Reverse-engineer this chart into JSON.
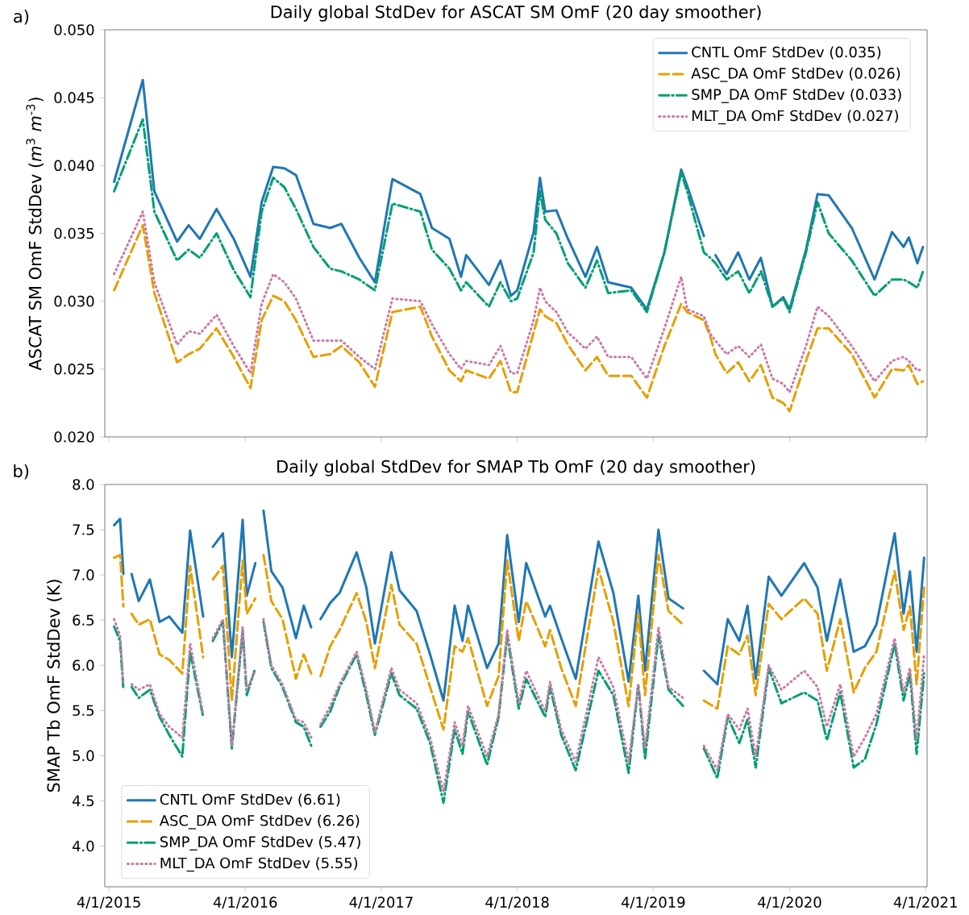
{
  "chart_data": [
    {
      "type": "line",
      "title": "Daily global StdDev for ASCAT SM OmF (20 day smoother)",
      "ylabel": "ASCAT SM OmF StdDev (*m*$^{3}$ *m*$^{-3}$)",
      "annotations": [
        "a)"
      ],
      "x": [
        "2015-04-15",
        "2015-07-01",
        "2015-08-01",
        "2015-10-01",
        "2015-11-01",
        "2015-12-01",
        "2016-01-15",
        "2016-03-01",
        "2016-04-15",
        "2016-05-15",
        "2016-06-15",
        "2016-07-15",
        "2016-08-15",
        "2016-10-01",
        "2016-11-15",
        "2016-12-15",
        "2017-02-01",
        "2017-03-15",
        "2017-05-01",
        "2017-07-15",
        "2017-08-15",
        "2017-10-01",
        "2017-11-01",
        "2017-11-15",
        "2018-01-15",
        "2018-02-15",
        "2018-03-15",
        "2018-04-01",
        "2018-05-15",
        "2018-06-01",
        "2018-06-15",
        "2018-07-15",
        "2018-08-15",
        "2018-10-01",
        "2018-11-01",
        "2018-12-01",
        "2019-02-01",
        "2019-03-15",
        "2019-05-01",
        "2019-06-15",
        "2019-07-01",
        "2019-08-15",
        "2019-09-01",
        "2019-09-15",
        "2019-10-15",
        "2019-11-15",
        "2019-12-15",
        "2020-01-15",
        "2020-02-15",
        "2020-03-15",
        "2020-04-01",
        "2020-05-15",
        "2020-06-15",
        "2020-07-15",
        "2020-09-15",
        "2020-11-15",
        "2021-01-01",
        "2021-02-01",
        "2021-02-15",
        "2021-03-10",
        "2021-03-25"
      ],
      "series": [
        {
          "name": "CNTL OmF StdDev (0.035)",
          "color": "#1f77b4",
          "line_style": "solid",
          "values": [
            0.0388,
            0.0463,
            0.0381,
            0.0344,
            0.0356,
            0.0346,
            0.0368,
            0.0346,
            0.0318,
            0.0373,
            0.0399,
            0.0398,
            0.0393,
            0.0357,
            0.0354,
            0.0357,
            0.0332,
            0.0314,
            0.039,
            0.0379,
            0.0354,
            0.0346,
            0.0318,
            0.0334,
            0.0312,
            0.033,
            0.0304,
            0.0308,
            0.0351,
            0.0391,
            0.0366,
            0.0367,
            0.0346,
            0.0318,
            0.034,
            0.0314,
            0.031,
            0.0294,
            0.0336,
            0.0397,
            0.0385,
            0.0348,
            null,
            0.0334,
            0.032,
            0.0336,
            0.0316,
            0.0332,
            0.0296,
            0.0303,
            0.0294,
            0.0338,
            0.0379,
            0.0378,
            0.0354,
            0.0316,
            0.0351,
            0.034,
            0.0347,
            0.0328,
            0.034
          ]
        },
        {
          "name": "ASC_DA OmF StdDev (0.026)",
          "color": "#e69f00",
          "line_style": "dashed",
          "values": [
            0.0308,
            0.0356,
            0.0306,
            0.0255,
            0.0261,
            0.0265,
            0.028,
            0.0259,
            0.0236,
            0.0286,
            0.0304,
            0.03,
            0.0286,
            0.0259,
            0.0261,
            0.0267,
            0.0255,
            0.0237,
            0.0292,
            0.0296,
            0.0274,
            0.0249,
            0.0241,
            0.0249,
            0.0243,
            0.0256,
            0.0233,
            0.0233,
            0.0277,
            0.0294,
            0.0289,
            0.0284,
            0.0268,
            0.0249,
            0.0259,
            0.0245,
            0.0245,
            0.0229,
            0.0267,
            0.0298,
            0.0292,
            0.0286,
            0.0274,
            0.0261,
            0.0247,
            0.0255,
            0.0241,
            0.0253,
            0.0229,
            0.0225,
            0.0219,
            0.0256,
            0.028,
            0.028,
            0.0261,
            0.0229,
            0.025,
            0.0249,
            0.0253,
            0.0239,
            0.0241
          ]
        },
        {
          "name": "SMP_DA OmF StdDev (0.033)",
          "color": "#009e73",
          "line_style": "dashdot",
          "values": [
            0.0381,
            0.0434,
            0.0366,
            0.033,
            0.0338,
            0.0332,
            0.035,
            0.0323,
            0.0303,
            0.0366,
            0.0391,
            0.0384,
            0.0368,
            0.034,
            0.0324,
            0.0322,
            0.0316,
            0.0308,
            0.0372,
            0.0366,
            0.0338,
            0.0324,
            0.0308,
            0.0314,
            0.0296,
            0.0314,
            0.03,
            0.0302,
            0.0336,
            0.0381,
            0.036,
            0.035,
            0.0328,
            0.031,
            0.033,
            0.0306,
            0.0308,
            0.0292,
            0.0336,
            0.0395,
            0.0381,
            0.0336,
            0.0332,
            0.0328,
            0.0316,
            0.0322,
            0.0306,
            0.0322,
            0.0296,
            0.0302,
            0.0292,
            0.0336,
            0.0373,
            0.035,
            0.033,
            0.0304,
            0.0316,
            0.0316,
            0.0314,
            0.031,
            0.0322
          ]
        },
        {
          "name": "MLT_DA OmF StdDev (0.027)",
          "color": "#cc79a7",
          "line_style": "dotted",
          "values": [
            0.032,
            0.0366,
            0.0314,
            0.0268,
            0.0278,
            0.0276,
            0.029,
            0.0267,
            0.0247,
            0.0298,
            0.032,
            0.0314,
            0.0302,
            0.0271,
            0.0271,
            0.0271,
            0.0259,
            0.025,
            0.0302,
            0.03,
            0.0283,
            0.0261,
            0.025,
            0.0256,
            0.0253,
            0.0267,
            0.0247,
            0.0247,
            0.0286,
            0.031,
            0.03,
            0.0292,
            0.0277,
            0.0265,
            0.0274,
            0.0259,
            0.0259,
            0.0243,
            0.028,
            0.0318,
            0.0294,
            0.0289,
            0.0276,
            0.0271,
            0.0261,
            0.0267,
            0.0259,
            0.0268,
            0.0243,
            0.0239,
            0.0233,
            0.0267,
            0.0296,
            0.0289,
            0.0267,
            0.0241,
            0.0256,
            0.0259,
            0.0256,
            0.0249,
            0.025
          ]
        }
      ],
      "xlim": [
        "2015-03-21",
        "2021-04-05"
      ],
      "ylim": [
        0.02,
        0.05
      ],
      "xticks": [
        {
          "value": "2015-04-01",
          "label": null
        },
        {
          "value": "2016-04-01",
          "label": null
        },
        {
          "value": "2017-04-01",
          "label": null
        },
        {
          "value": "2018-04-01",
          "label": null
        },
        {
          "value": "2019-04-01",
          "label": null
        },
        {
          "value": "2020-04-01",
          "label": null
        },
        {
          "value": "2021-04-01",
          "label": null
        }
      ],
      "yticks": [
        {
          "value": 0.02,
          "label": "0.020"
        },
        {
          "value": 0.025,
          "label": "0.025"
        },
        {
          "value": 0.03,
          "label": "0.030"
        },
        {
          "value": 0.035,
          "label": "0.035"
        },
        {
          "value": 0.04,
          "label": "0.040"
        },
        {
          "value": 0.045,
          "label": "0.045"
        },
        {
          "value": 0.05,
          "label": "0.050"
        }
      ],
      "tick_labels": "y",
      "legend": "top right"
    },
    {
      "type": "line",
      "title": "Daily global StdDev for SMAP Tb OmF (20 day smoother)",
      "ylabel": "SMAP Tb OmF StdDev (K)",
      "annotations": [
        "b)"
      ],
      "x": [
        "2015-04-15",
        "2015-05-01",
        "2015-05-10",
        "2015-05-20",
        "2015-06-01",
        "2015-06-20",
        "2015-07-20",
        "2015-08-15",
        "2015-09-10",
        "2015-10-15",
        "2015-11-05",
        "2015-12-10",
        "2015-12-25",
        "2016-01-05",
        "2016-02-01",
        "2016-02-25",
        "2016-03-25",
        "2016-04-05",
        "2016-04-28",
        "2016-05-08",
        "2016-05-20",
        "2016-06-10",
        "2016-07-10",
        "2016-08-15",
        "2016-09-05",
        "2016-09-25",
        "2016-10-10",
        "2016-10-20",
        "2016-11-15",
        "2016-12-10",
        "2017-01-25",
        "2017-02-20",
        "2017-03-15",
        "2017-04-28",
        "2017-05-20",
        "2017-07-05",
        "2017-08-10",
        "2017-09-15",
        "2017-10-15",
        "2017-11-05",
        "2017-11-20",
        "2018-01-10",
        "2018-02-10",
        "2018-03-05",
        "2018-04-05",
        "2018-04-25",
        "2018-06-15",
        "2018-06-28",
        "2018-07-28",
        "2018-09-05",
        "2018-11-05",
        "2018-12-15",
        "2019-01-25",
        "2019-02-20",
        "2019-03-10",
        "2019-04-15",
        "2019-05-12",
        "2019-06-20",
        "2019-07-25",
        "2019-08-15",
        "2019-09-20",
        "2019-10-18",
        "2019-11-18",
        "2019-12-10",
        "2020-01-01",
        "2020-02-05",
        "2020-03-10",
        "2020-05-10",
        "2020-06-15",
        "2020-07-10",
        "2020-08-15",
        "2020-09-20",
        "2020-10-20",
        "2020-11-20",
        "2021-01-08",
        "2021-02-01",
        "2021-02-18",
        "2021-03-08",
        "2021-03-28"
      ],
      "series": [
        {
          "name": "CNTL OmF StdDev (6.61)",
          "color": "#1f77b4",
          "line_style": "solid",
          "values": [
            7.55,
            7.62,
            7.01,
            null,
            7.01,
            6.71,
            6.95,
            6.48,
            6.54,
            6.36,
            7.49,
            6.54,
            null,
            7.31,
            7.46,
            6.09,
            7.61,
            6.77,
            7.13,
            null,
            7.71,
            7.04,
            6.86,
            6.3,
            6.66,
            6.42,
            null,
            6.51,
            6.69,
            6.8,
            7.25,
            6.86,
            6.24,
            7.25,
            6.83,
            6.6,
            6.12,
            5.61,
            6.66,
            6.27,
            6.66,
            5.97,
            6.24,
            7.44,
            6.48,
            7.13,
            6.54,
            6.66,
            6.3,
            5.85,
            7.37,
            6.8,
            5.82,
            6.77,
            5.94,
            7.5,
            6.74,
            6.63,
            null,
            5.94,
            5.79,
            6.51,
            6.27,
            6.66,
            5.85,
            6.98,
            6.77,
            7.13,
            6.86,
            6.27,
            6.95,
            6.15,
            6.21,
            6.45,
            7.46,
            6.57,
            7.04,
            6.15,
            7.19
          ]
        },
        {
          "name": "ASC_DA OmF StdDev (6.26)",
          "color": "#e69f00",
          "line_style": "dashed",
          "values": [
            7.19,
            7.22,
            6.65,
            null,
            6.57,
            6.45,
            6.51,
            6.12,
            6.06,
            5.91,
            7.1,
            6.09,
            null,
            6.95,
            7.1,
            5.61,
            7.16,
            6.57,
            6.74,
            null,
            7.22,
            6.71,
            6.51,
            5.85,
            6.12,
            5.91,
            null,
            5.88,
            6.21,
            6.39,
            6.8,
            6.48,
            5.97,
            6.89,
            6.45,
            6.24,
            5.76,
            5.29,
            6.21,
            6.15,
            6.3,
            5.55,
            5.88,
            7.16,
            6.27,
            6.71,
            6.21,
            6.39,
            5.97,
            5.55,
            7.07,
            6.48,
            5.55,
            6.57,
            5.67,
            7.22,
            6.6,
            6.45,
            null,
            5.61,
            5.52,
            6.21,
            6.12,
            6.33,
            5.67,
            6.68,
            6.51,
            6.74,
            6.57,
            5.94,
            6.51,
            5.7,
            5.97,
            6.15,
            7.04,
            6.39,
            6.65,
            5.79,
            6.86
          ]
        },
        {
          "name": "SMP_DA OmF StdDev (5.47)",
          "color": "#009e73",
          "line_style": "dashdot",
          "values": [
            6.43,
            6.27,
            5.73,
            null,
            5.76,
            5.64,
            5.73,
            5.43,
            5.23,
            4.99,
            6.15,
            5.43,
            null,
            6.27,
            6.48,
            5.08,
            6.39,
            5.67,
            5.97,
            null,
            6.48,
            5.97,
            5.76,
            5.37,
            5.32,
            5.11,
            null,
            5.32,
            5.49,
            5.76,
            6.12,
            5.67,
            5.23,
            5.91,
            5.67,
            5.52,
            5.14,
            4.48,
            5.29,
            5.02,
            5.49,
            4.9,
            5.43,
            6.33,
            5.52,
            5.85,
            5.43,
            5.76,
            5.23,
            4.84,
            5.94,
            5.67,
            4.81,
            5.79,
            4.96,
            6.33,
            5.73,
            5.55,
            null,
            5.08,
            4.75,
            5.43,
            5.14,
            5.4,
            4.87,
            5.97,
            5.58,
            5.7,
            5.61,
            5.17,
            5.7,
            4.87,
            4.96,
            5.35,
            6.24,
            5.61,
            5.91,
            5.02,
            5.91
          ]
        },
        {
          "name": "MLT_DA OmF StdDev (5.55)",
          "color": "#cc79a7",
          "line_style": "dotted",
          "values": [
            6.51,
            6.33,
            5.79,
            null,
            5.79,
            5.73,
            5.79,
            5.46,
            5.32,
            5.2,
            6.24,
            5.46,
            null,
            6.3,
            6.51,
            5.11,
            6.42,
            5.73,
            5.94,
            null,
            6.51,
            6.0,
            5.79,
            5.4,
            5.37,
            5.2,
            null,
            5.35,
            5.55,
            5.79,
            6.15,
            5.73,
            5.26,
            5.97,
            5.73,
            5.58,
            5.2,
            4.6,
            5.37,
            5.11,
            5.55,
            4.99,
            5.46,
            6.39,
            5.58,
            5.94,
            5.49,
            5.82,
            5.29,
            4.93,
            6.09,
            5.76,
            4.93,
            5.79,
            5.08,
            6.42,
            5.76,
            5.64,
            null,
            5.11,
            4.84,
            5.46,
            5.29,
            5.52,
            4.99,
            6.0,
            5.73,
            5.94,
            5.76,
            5.32,
            5.79,
            4.99,
            5.2,
            5.46,
            6.3,
            5.7,
            5.97,
            5.17,
            6.12
          ]
        }
      ],
      "xlim": [
        "2015-03-21",
        "2021-04-05"
      ],
      "ylim": [
        3.55,
        8.0
      ],
      "xticks": [
        {
          "value": "2015-04-01",
          "label": "4/1/2015"
        },
        {
          "value": "2016-04-01",
          "label": "4/1/2016"
        },
        {
          "value": "2017-04-01",
          "label": "4/1/2017"
        },
        {
          "value": "2018-04-01",
          "label": "4/1/2018"
        },
        {
          "value": "2019-04-01",
          "label": "4/1/2019"
        },
        {
          "value": "2020-04-01",
          "label": "4/1/2020"
        },
        {
          "value": "2021-04-01",
          "label": "4/1/2021"
        }
      ],
      "yticks": [
        {
          "value": 4.0,
          "label": "4.0"
        },
        {
          "value": 4.5,
          "label": "4.5"
        },
        {
          "value": 5.0,
          "label": "5.0"
        },
        {
          "value": 5.5,
          "label": "5.5"
        },
        {
          "value": 6.0,
          "label": "6.0"
        },
        {
          "value": 6.5,
          "label": "6.5"
        },
        {
          "value": 7.0,
          "label": "7.0"
        },
        {
          "value": 7.5,
          "label": "7.5"
        },
        {
          "value": 8.0,
          "label": "8.0"
        }
      ],
      "legend": "bottom left"
    }
  ]
}
